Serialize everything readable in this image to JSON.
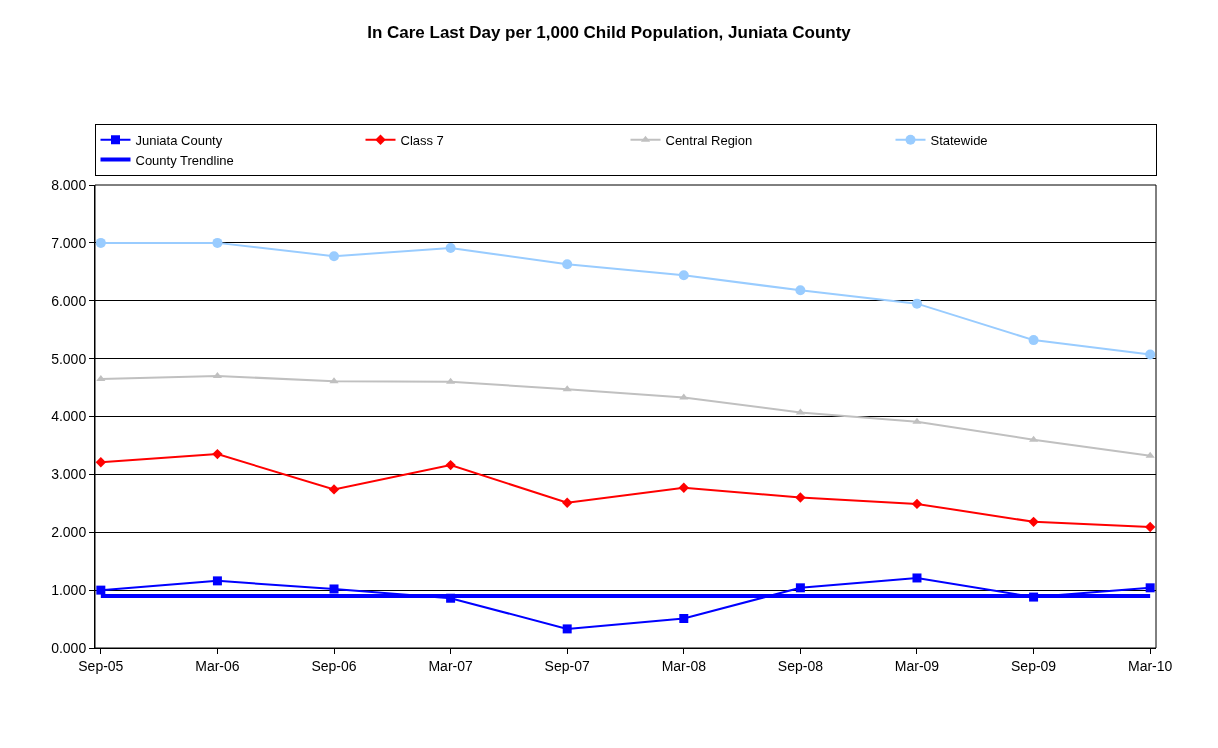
{
  "chart_data": {
    "type": "line",
    "title": "In Care Last Day per 1,000 Child Population, Juniata County",
    "categories": [
      "Sep-05",
      "Mar-06",
      "Sep-06",
      "Mar-07",
      "Sep-07",
      "Mar-08",
      "Sep-08",
      "Mar-09",
      "Sep-09",
      "Mar-10"
    ],
    "series": [
      {
        "name": "Juniata County",
        "color": "#0000ff",
        "marker": "square",
        "values": [
          1.0,
          1.16,
          1.02,
          0.86,
          0.33,
          0.51,
          1.04,
          1.21,
          0.88,
          1.04
        ]
      },
      {
        "name": "Class 7",
        "color": "#ff0000",
        "marker": "diamond",
        "values": [
          3.21,
          3.35,
          2.74,
          3.16,
          2.51,
          2.77,
          2.6,
          2.49,
          2.18,
          2.09
        ]
      },
      {
        "name": "Central Region",
        "color": "#c0c0c0",
        "marker": "triangle",
        "values": [
          4.65,
          4.7,
          4.61,
          4.6,
          4.47,
          4.33,
          4.07,
          3.91,
          3.6,
          3.32
        ]
      },
      {
        "name": "Statewide",
        "color": "#99ccff",
        "marker": "circle",
        "values": [
          7.0,
          7.0,
          6.77,
          6.91,
          6.63,
          6.44,
          6.18,
          5.95,
          5.32,
          5.07
        ]
      },
      {
        "name": "County Trendline",
        "color": "#0000ff",
        "marker": "none",
        "values": [
          0.9,
          0.9,
          0.9,
          0.9,
          0.9,
          0.9,
          0.9,
          0.9,
          0.9,
          0.9
        ]
      }
    ],
    "ylim": [
      0,
      8
    ],
    "yticks": [
      {
        "value": 0,
        "label": "0.000"
      },
      {
        "value": 1,
        "label": "1.000"
      },
      {
        "value": 2,
        "label": "2.000"
      },
      {
        "value": 3,
        "label": "3.000"
      },
      {
        "value": 4,
        "label": "4.000"
      },
      {
        "value": 5,
        "label": "5.000"
      },
      {
        "value": 6,
        "label": "6.000"
      },
      {
        "value": 7,
        "label": "7.000"
      },
      {
        "value": 8,
        "label": "8.000"
      }
    ],
    "grid": "y",
    "legend": "top",
    "line_style": "solid"
  }
}
